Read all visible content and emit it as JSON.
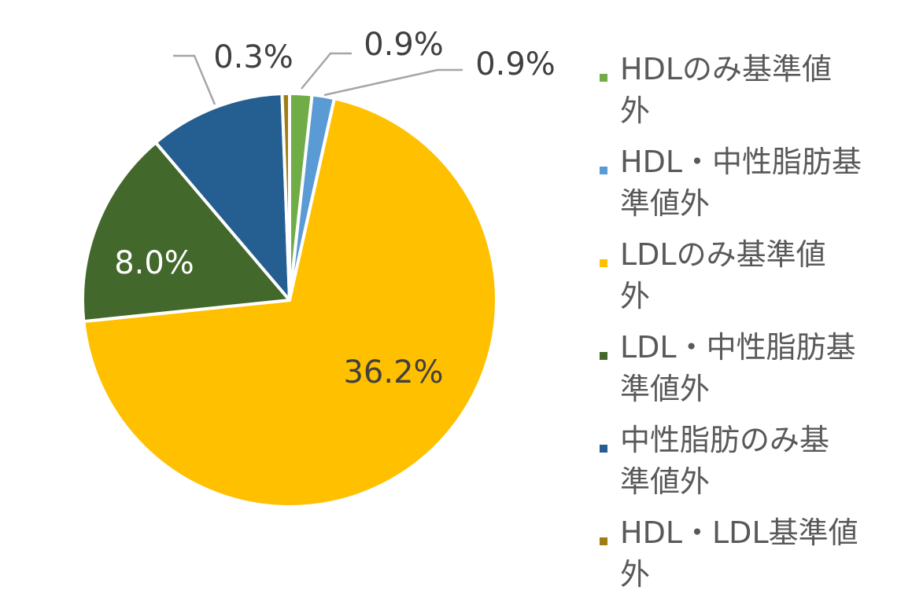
{
  "chart_data": {
    "type": "pie",
    "title": "",
    "slices": [
      {
        "label": "HDLのみ基準値外",
        "value": 0.9,
        "value_label": "0.9%",
        "color": "#70ad47"
      },
      {
        "label": "HDL・中性脂肪基準値外",
        "value": 0.9,
        "value_label": "0.9%",
        "color": "#5b9bd5"
      },
      {
        "label": "LDLのみ基準値外",
        "value": 36.2,
        "value_label": "36.2%",
        "color": "#ffc000"
      },
      {
        "label": "LDL・中性脂肪基準値外",
        "value": 8.0,
        "value_label": "8.0%",
        "color": "#43682b"
      },
      {
        "label": "中性脂肪のみ基準値外",
        "value": 5.5,
        "value_label": "",
        "color": "#255e91"
      },
      {
        "label": "HDL・LDL基準値外",
        "value": 0.3,
        "value_label": "0.3%",
        "color": "#9e7d14"
      }
    ],
    "legend": {
      "position": "right",
      "labels": [
        "HDLのみ基準値外",
        "HDL・中性脂肪基準値外",
        "LDLのみ基準値外",
        "LDL・中性脂肪基準値外",
        "中性脂肪のみ基準値外",
        "HDL・LDL基準値外"
      ],
      "lines": [
        [
          "HDLのみ基準値",
          "外"
        ],
        [
          "HDL・中性脂肪基",
          "準値外"
        ],
        [
          "LDLのみ基準値",
          "外"
        ],
        [
          "LDL・中性脂肪基",
          "準値外"
        ],
        [
          "中性脂肪のみ基",
          "準値外"
        ],
        [
          "HDL・LDL基準値",
          "外"
        ]
      ]
    },
    "label_colors": {
      "outside": "#404040",
      "on_dark": "#ffffff",
      "on_light": "#404040"
    },
    "leader_line_color": "#a6a6a6"
  }
}
